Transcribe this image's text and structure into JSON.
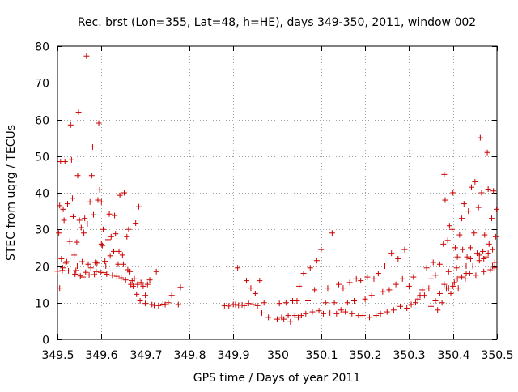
{
  "chart_data": {
    "type": "scatter",
    "title": "Rec. brst (Lon=355, Lat=48, h=HE), days 349-350, 2011, window 002",
    "xlabel": "GPS time / Days of year 2011",
    "ylabel": "STEC from uqrg / TECUs",
    "xlim": [
      349.5,
      350.5
    ],
    "ylim": [
      0,
      80
    ],
    "grid": true,
    "marker": "plus",
    "color": "#cc0000",
    "xticks": [
      349.5,
      349.6,
      349.7,
      349.8,
      349.9,
      350.0,
      350.1,
      350.2,
      350.3,
      350.4,
      350.5
    ],
    "xtick_labels": [
      "349.5",
      "349.6",
      "349.7",
      "349.8",
      "349.9",
      "350",
      "350.1",
      "350.2",
      "350.3",
      "350.4",
      "350.5"
    ],
    "yticks": [
      0,
      10,
      20,
      30,
      40,
      50,
      60,
      70,
      80
    ],
    "ytick_labels": [
      "0",
      "10",
      "20",
      "30",
      "40",
      "50",
      "60",
      "70",
      "80"
    ],
    "points": [
      [
        349.5,
        18.6
      ],
      [
        349.503,
        29.0
      ],
      [
        349.505,
        36.5
      ],
      [
        349.507,
        48.5
      ],
      [
        349.509,
        22.0
      ],
      [
        349.511,
        18.8
      ],
      [
        349.513,
        35.5
      ],
      [
        349.515,
        32.5
      ],
      [
        349.517,
        48.5
      ],
      [
        349.519,
        20.8
      ],
      [
        349.521,
        21.2
      ],
      [
        349.523,
        37.0
      ],
      [
        349.525,
        18.7
      ],
      [
        349.528,
        26.7
      ],
      [
        349.53,
        58.5
      ],
      [
        349.532,
        49.0
      ],
      [
        349.534,
        38.5
      ],
      [
        349.536,
        33.5
      ],
      [
        349.538,
        23.0
      ],
      [
        349.54,
        17.8
      ],
      [
        349.542,
        18.8
      ],
      [
        349.544,
        26.5
      ],
      [
        349.546,
        44.7
      ],
      [
        349.548,
        62.0
      ],
      [
        349.55,
        32.5
      ],
      [
        349.552,
        17.3
      ],
      [
        349.554,
        30.5
      ],
      [
        349.556,
        21.2
      ],
      [
        349.558,
        17.0
      ],
      [
        349.56,
        29.0
      ],
      [
        349.562,
        33.0
      ],
      [
        349.564,
        18.3
      ],
      [
        349.566,
        77.3
      ],
      [
        349.568,
        31.5
      ],
      [
        349.57,
        20.5
      ],
      [
        349.572,
        17.6
      ],
      [
        349.574,
        37.5
      ],
      [
        349.576,
        19.5
      ],
      [
        349.578,
        44.7
      ],
      [
        349.58,
        52.5
      ],
      [
        349.582,
        34.0
      ],
      [
        349.584,
        17.7
      ],
      [
        349.586,
        21.0
      ],
      [
        349.588,
        18.5
      ],
      [
        349.59,
        20.8
      ],
      [
        349.592,
        38.0
      ],
      [
        349.594,
        59.0
      ],
      [
        349.596,
        40.8
      ],
      [
        349.598,
        18.3
      ],
      [
        349.6,
        37.5
      ],
      [
        349.602,
        25.6
      ],
      [
        349.604,
        30.0
      ],
      [
        349.606,
        18.2
      ],
      [
        349.608,
        21.3
      ],
      [
        349.61,
        20.0
      ],
      [
        349.612,
        17.8
      ],
      [
        349.615,
        27.2
      ],
      [
        349.618,
        34.2
      ],
      [
        349.62,
        22.8
      ],
      [
        349.622,
        28.0
      ],
      [
        349.625,
        17.5
      ],
      [
        349.628,
        24.0
      ],
      [
        349.63,
        33.8
      ],
      [
        349.632,
        28.8
      ],
      [
        349.635,
        17.2
      ],
      [
        349.638,
        20.5
      ],
      [
        349.64,
        24.0
      ],
      [
        349.642,
        39.3
      ],
      [
        349.645,
        16.8
      ],
      [
        349.648,
        23.0
      ],
      [
        349.65,
        20.5
      ],
      [
        349.652,
        40.0
      ],
      [
        349.655,
        16.2
      ],
      [
        349.658,
        28.0
      ],
      [
        349.66,
        19.0
      ],
      [
        349.662,
        30.0
      ],
      [
        349.665,
        18.5
      ],
      [
        349.667,
        15.0
      ],
      [
        349.67,
        16.0
      ],
      [
        349.672,
        14.5
      ],
      [
        349.675,
        16.5
      ],
      [
        349.678,
        31.7
      ],
      [
        349.68,
        12.3
      ],
      [
        349.682,
        15.0
      ],
      [
        349.685,
        36.2
      ],
      [
        349.688,
        10.5
      ],
      [
        349.69,
        15.5
      ],
      [
        349.695,
        14.5
      ],
      [
        349.7,
        9.8
      ],
      [
        349.705,
        15.0
      ],
      [
        349.71,
        16.2
      ],
      [
        349.715,
        9.5
      ],
      [
        349.72,
        9.3
      ],
      [
        349.725,
        18.5
      ],
      [
        349.73,
        9.2
      ],
      [
        349.74,
        9.6
      ],
      [
        349.745,
        9.5
      ],
      [
        349.752,
        10.0
      ],
      [
        349.76,
        12.0
      ],
      [
        349.775,
        9.5
      ],
      [
        349.78,
        14.2
      ],
      [
        349.88,
        9.2
      ],
      [
        349.89,
        9.1
      ],
      [
        349.9,
        9.5
      ],
      [
        349.905,
        9.5
      ],
      [
        349.91,
        19.5
      ],
      [
        349.912,
        9.3
      ],
      [
        349.92,
        9.4
      ],
      [
        349.925,
        9.2
      ],
      [
        349.93,
        16.0
      ],
      [
        349.935,
        9.8
      ],
      [
        349.94,
        14.0
      ],
      [
        349.945,
        9.5
      ],
      [
        349.95,
        12.5
      ],
      [
        349.955,
        9.2
      ],
      [
        349.96,
        16.0
      ],
      [
        349.965,
        7.2
      ],
      [
        349.97,
        10.0
      ],
      [
        349.98,
        6.0
      ],
      [
        350.0,
        5.5
      ],
      [
        350.005,
        9.8
      ],
      [
        350.01,
        6.0
      ],
      [
        350.015,
        5.5
      ],
      [
        350.02,
        10.0
      ],
      [
        350.025,
        6.5
      ],
      [
        350.03,
        4.8
      ],
      [
        350.035,
        10.5
      ],
      [
        350.04,
        6.5
      ],
      [
        350.045,
        10.5
      ],
      [
        350.048,
        6.0
      ],
      [
        350.05,
        14.5
      ],
      [
        350.055,
        6.5
      ],
      [
        350.06,
        18.0
      ],
      [
        350.065,
        7.0
      ],
      [
        350.07,
        10.5
      ],
      [
        350.075,
        19.5
      ],
      [
        350.08,
        7.5
      ],
      [
        350.085,
        13.5
      ],
      [
        350.09,
        21.5
      ],
      [
        350.095,
        7.8
      ],
      [
        350.1,
        24.5
      ],
      [
        350.105,
        7.0
      ],
      [
        350.11,
        10.0
      ],
      [
        350.115,
        14.0
      ],
      [
        350.12,
        7.2
      ],
      [
        350.125,
        29.0
      ],
      [
        350.13,
        10.0
      ],
      [
        350.135,
        7.0
      ],
      [
        350.14,
        15.0
      ],
      [
        350.145,
        8.0
      ],
      [
        350.15,
        14.0
      ],
      [
        350.155,
        7.5
      ],
      [
        350.16,
        10.0
      ],
      [
        350.165,
        15.5
      ],
      [
        350.17,
        7.0
      ],
      [
        350.175,
        10.5
      ],
      [
        350.18,
        16.5
      ],
      [
        350.185,
        6.5
      ],
      [
        350.19,
        16.0
      ],
      [
        350.195,
        6.5
      ],
      [
        350.2,
        11.0
      ],
      [
        350.205,
        17.0
      ],
      [
        350.21,
        6.0
      ],
      [
        350.215,
        12.0
      ],
      [
        350.22,
        16.5
      ],
      [
        350.225,
        6.5
      ],
      [
        350.23,
        18.0
      ],
      [
        350.235,
        7.0
      ],
      [
        350.24,
        13.0
      ],
      [
        350.245,
        20.0
      ],
      [
        350.25,
        7.5
      ],
      [
        350.255,
        13.5
      ],
      [
        350.26,
        23.5
      ],
      [
        350.265,
        8.0
      ],
      [
        350.27,
        15.0
      ],
      [
        350.275,
        22.0
      ],
      [
        350.28,
        9.0
      ],
      [
        350.285,
        16.5
      ],
      [
        350.29,
        24.5
      ],
      [
        350.295,
        8.5
      ],
      [
        350.3,
        14.5
      ],
      [
        350.305,
        9.5
      ],
      [
        350.31,
        17.0
      ],
      [
        350.315,
        10.0
      ],
      [
        350.32,
        11.0
      ],
      [
        350.325,
        12.0
      ],
      [
        350.33,
        13.5
      ],
      [
        350.335,
        12.0
      ],
      [
        350.34,
        19.5
      ],
      [
        350.345,
        14.0
      ],
      [
        350.35,
        16.5
      ],
      [
        350.355,
        21.0
      ],
      [
        350.36,
        17.5
      ],
      [
        350.365,
        8.0
      ],
      [
        350.37,
        20.5
      ],
      [
        350.375,
        10.0
      ],
      [
        350.378,
        26.0
      ],
      [
        350.38,
        45.0
      ],
      [
        350.382,
        38.0
      ],
      [
        350.385,
        14.0
      ],
      [
        350.388,
        27.0
      ],
      [
        350.39,
        18.5
      ],
      [
        350.392,
        31.0
      ],
      [
        350.395,
        12.5
      ],
      [
        350.398,
        30.0
      ],
      [
        350.4,
        40.0
      ],
      [
        350.403,
        15.5
      ],
      [
        350.405,
        25.0
      ],
      [
        350.408,
        19.5
      ],
      [
        350.41,
        22.5
      ],
      [
        350.412,
        14.0
      ],
      [
        350.415,
        28.5
      ],
      [
        350.418,
        17.0
      ],
      [
        350.42,
        33.0
      ],
      [
        350.422,
        24.5
      ],
      [
        350.425,
        37.0
      ],
      [
        350.428,
        16.5
      ],
      [
        350.43,
        20.0
      ],
      [
        350.432,
        22.5
      ],
      [
        350.435,
        35.0
      ],
      [
        350.438,
        18.0
      ],
      [
        350.44,
        25.0
      ],
      [
        350.442,
        41.5
      ],
      [
        350.445,
        20.0
      ],
      [
        350.448,
        29.0
      ],
      [
        350.45,
        43.0
      ],
      [
        350.452,
        17.5
      ],
      [
        350.455,
        23.5
      ],
      [
        350.458,
        36.0
      ],
      [
        350.46,
        21.5
      ],
      [
        350.462,
        55.0
      ],
      [
        350.465,
        40.0
      ],
      [
        350.468,
        24.0
      ],
      [
        350.47,
        18.5
      ],
      [
        350.472,
        28.5
      ],
      [
        350.475,
        22.5
      ],
      [
        350.478,
        51.0
      ],
      [
        350.48,
        41.0
      ],
      [
        350.482,
        26.0
      ],
      [
        350.485,
        19.0
      ],
      [
        350.488,
        33.0
      ],
      [
        350.49,
        24.5
      ],
      [
        350.492,
        40.5
      ],
      [
        350.495,
        21.0
      ],
      [
        350.497,
        28.0
      ],
      [
        350.499,
        35.5
      ],
      [
        349.505,
        14.0
      ],
      [
        349.512,
        19.5
      ],
      [
        349.545,
        20.0
      ],
      [
        349.6,
        26.0
      ],
      [
        349.7,
        12.0
      ],
      [
        350.35,
        9.0
      ],
      [
        350.36,
        10.5
      ],
      [
        350.37,
        12.5
      ],
      [
        350.38,
        15.0
      ],
      [
        350.39,
        14.0
      ],
      [
        350.4,
        14.5
      ],
      [
        350.41,
        16.5
      ],
      [
        350.42,
        17.0
      ],
      [
        350.43,
        18.0
      ],
      [
        350.44,
        22.0
      ],
      [
        350.46,
        23.0
      ],
      [
        350.47,
        22.0
      ],
      [
        350.48,
        23.5
      ],
      [
        350.49,
        20.0
      ],
      [
        350.495,
        19.5
      ]
    ]
  }
}
